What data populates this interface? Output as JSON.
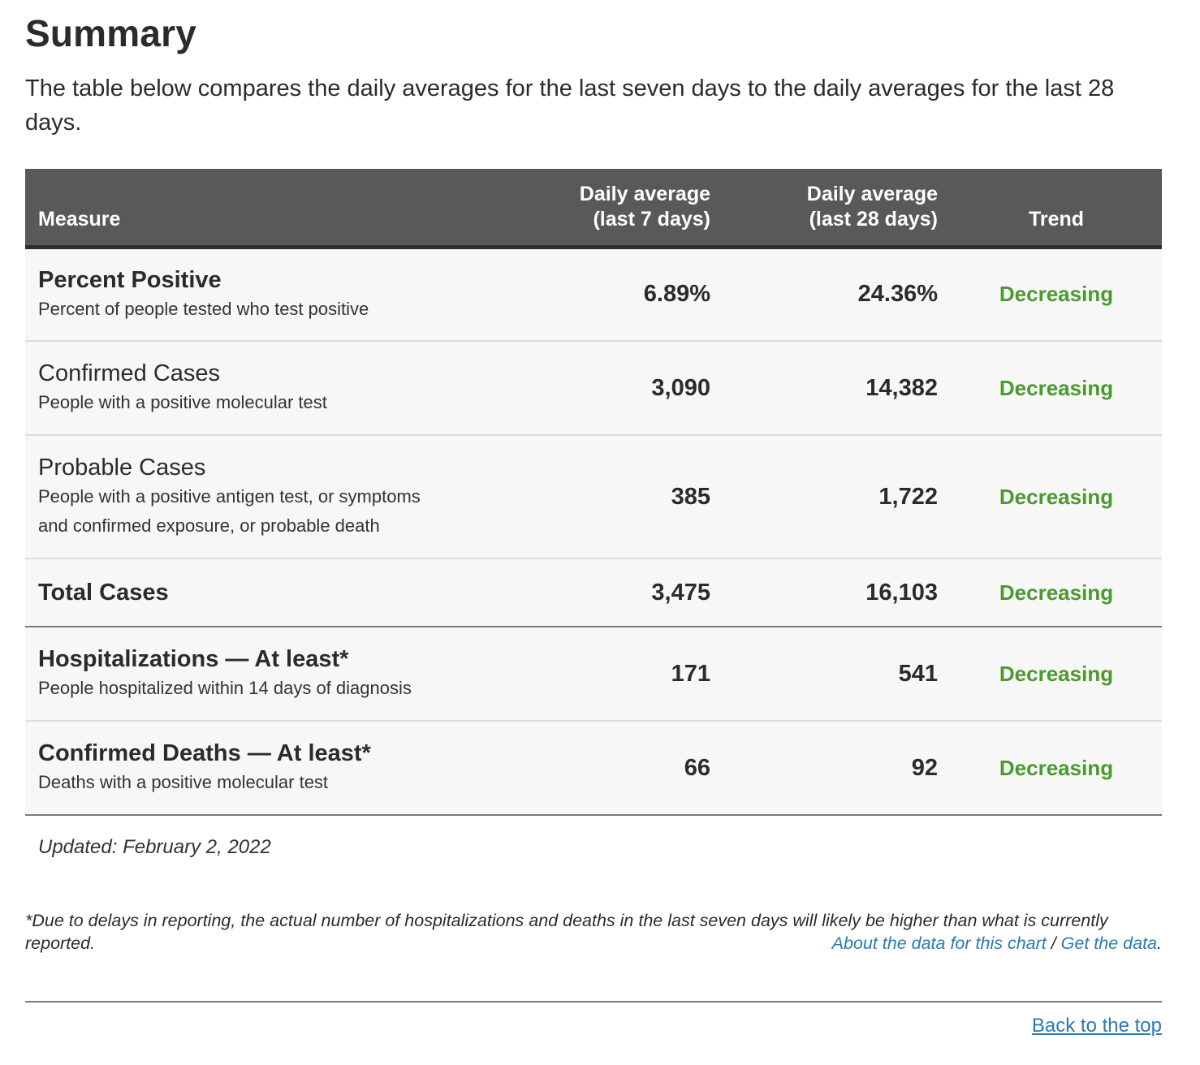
{
  "page": {
    "title": "Summary",
    "intro": "The table below compares the daily averages for the last seven days to the daily averages for the last 28 days."
  },
  "table": {
    "headers": {
      "measure": "Measure",
      "avg7_line1": "Daily average",
      "avg7_line2": "(last 7 days)",
      "avg28_line1": "Daily average",
      "avg28_line2": "(last 28 days)",
      "trend": "Trend"
    },
    "rows": [
      {
        "title": "Percent Positive",
        "bold": true,
        "desc": "Percent of people tested who test positive",
        "avg7": "6.89%",
        "avg28": "24.36%",
        "trend": "Decreasing"
      },
      {
        "title": "Confirmed Cases",
        "bold": false,
        "desc": "People with a positive molecular test",
        "avg7": "3,090",
        "avg28": "14,382",
        "trend": "Decreasing"
      },
      {
        "title": "Probable Cases",
        "bold": false,
        "desc_line1": "People with a positive antigen test, or symptoms",
        "desc_line2": "and confirmed exposure, or probable death",
        "avg7": "385",
        "avg28": "1,722",
        "trend": "Decreasing"
      },
      {
        "title": "Total Cases",
        "bold": true,
        "avg7": "3,475",
        "avg28": "16,103",
        "trend": "Decreasing"
      },
      {
        "title": "Hospitalizations — At least*",
        "bold": true,
        "desc": "People hospitalized within 14 days of diagnosis",
        "avg7": "171",
        "avg28": "541",
        "trend": "Decreasing"
      },
      {
        "title": "Confirmed Deaths — At least*",
        "bold": true,
        "desc": "Deaths with a positive molecular test",
        "avg7": "66",
        "avg28": "92",
        "trend": "Decreasing"
      }
    ]
  },
  "updated": "Updated: February 2, 2022",
  "footnote": "*Due to delays in reporting, the actual number of hospitalizations and deaths in the last seven days will likely be higher than what is currently reported.",
  "links": {
    "about": "About the data for this chart",
    "separator": " / ",
    "get_data": "Get the data",
    "end": "."
  },
  "back_to_top": "Back to the top",
  "colors": {
    "header_bg": "#595959",
    "trend_decreasing": "#4a9a2e",
    "link": "#2a7ab0"
  }
}
